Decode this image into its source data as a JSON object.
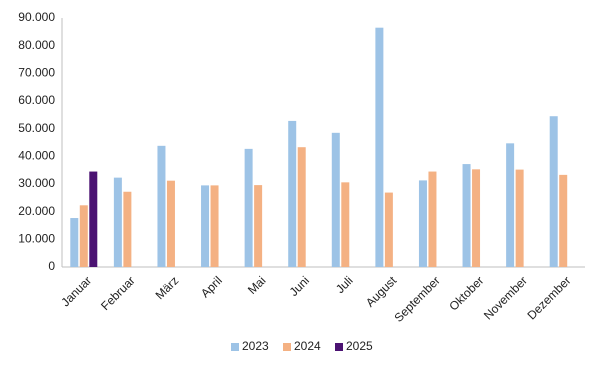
{
  "chart_data": {
    "type": "bar",
    "categories": [
      "Januar",
      "Februar",
      "März",
      "April",
      "Mai",
      "Juni",
      "Juli",
      "August",
      "September",
      "Oktober",
      "November",
      "Dezember"
    ],
    "series": [
      {
        "name": "2023",
        "color": "#9dc3e6",
        "values": [
          17700,
          32300,
          43800,
          29500,
          42700,
          52800,
          48500,
          86500,
          31300,
          37200,
          44700,
          54500
        ]
      },
      {
        "name": "2024",
        "color": "#f4b183",
        "values": [
          22300,
          27200,
          31200,
          29500,
          29600,
          43300,
          30600,
          26900,
          34500,
          35300,
          35200,
          33300
        ]
      },
      {
        "name": "2025",
        "color": "#4b1272",
        "values": [
          34500,
          null,
          null,
          null,
          null,
          null,
          null,
          null,
          null,
          null,
          null,
          null
        ]
      }
    ],
    "ylim": [
      0,
      90000
    ],
    "yticks": [
      0,
      {
        "value": 10000,
        "label": "10.000"
      },
      {
        "value": 20000,
        "label": "20.000"
      },
      {
        "value": 30000,
        "label": "30.000"
      },
      {
        "value": 40000,
        "label": "40.000"
      },
      {
        "value": 50000,
        "label": "50.000"
      },
      {
        "value": 60000,
        "label": "60.000"
      },
      {
        "value": 70000,
        "label": "70.000"
      },
      {
        "value": 80000,
        "label": "80.000"
      },
      {
        "value": 90000,
        "label": "90.000"
      }
    ],
    "grid": false,
    "legend": "bottom"
  }
}
